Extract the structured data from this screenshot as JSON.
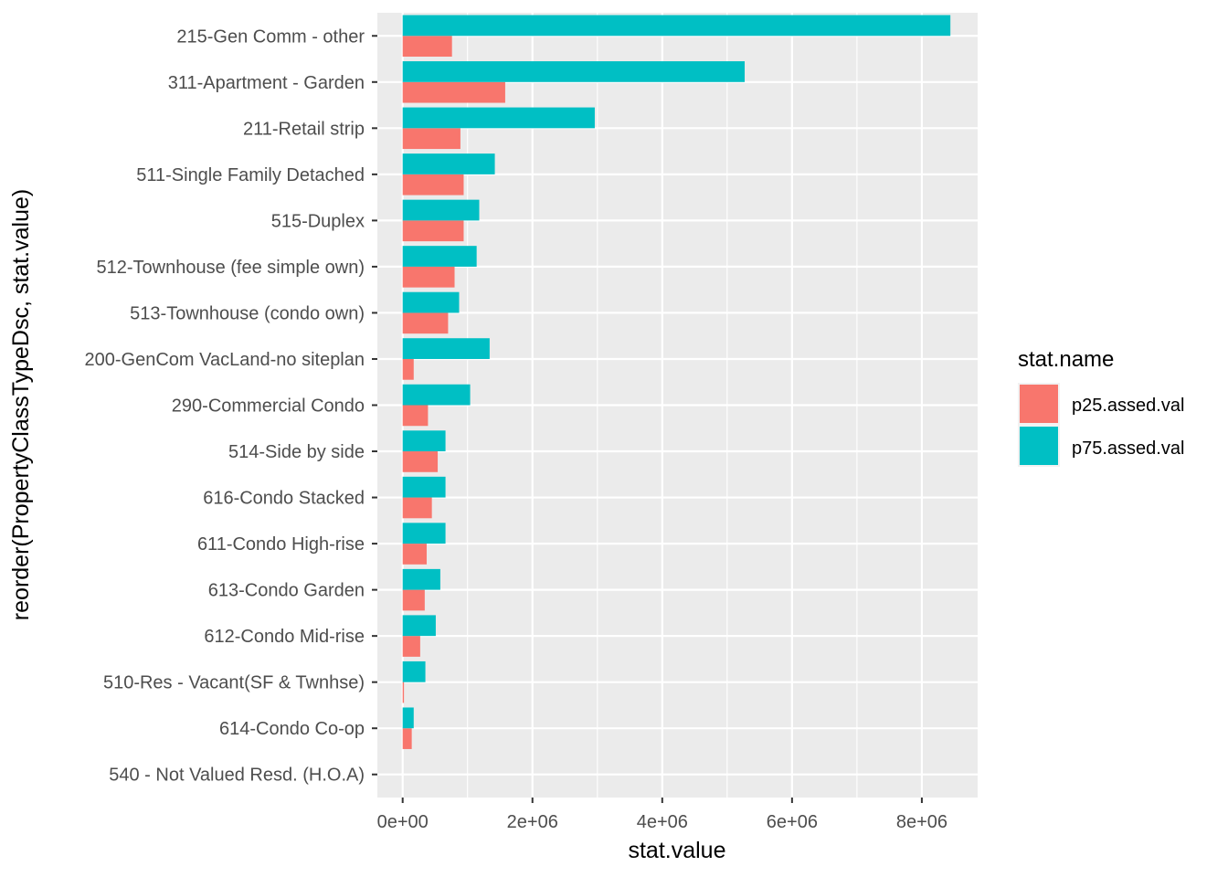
{
  "chart_data": {
    "type": "bar",
    "orientation": "horizontal",
    "title": "",
    "xlabel": "stat.value",
    "ylabel": "reorder(PropertyClassTypeDsc, stat.value)",
    "xlim": [
      -390000,
      8860000
    ],
    "x_ticks": [
      0,
      2000000,
      4000000,
      6000000,
      8000000
    ],
    "x_tick_labels": [
      "0e+00",
      "2e+06",
      "4e+06",
      "6e+06",
      "8e+06"
    ],
    "grid": true,
    "legend": {
      "title": "stat.name",
      "position": "right",
      "entries": [
        "p25.assed.val",
        "p75.assed.val"
      ]
    },
    "colors": {
      "p25.assed.val": "#F8766D",
      "p75.assed.val": "#00BFC4",
      "panel": "#EBEBEB",
      "grid": "#FFFFFF"
    },
    "categories": [
      "215-Gen Comm - other",
      "311-Apartment - Garden",
      "211-Retail strip",
      "511-Single Family Detached",
      "515-Duplex",
      "512-Townhouse (fee simple own)",
      "513-Townhouse (condo own)",
      "200-GenCom VacLand-no siteplan",
      "290-Commercial Condo",
      "514-Side by side",
      "616-Condo Stacked",
      "611-Condo High-rise",
      "613-Condo Garden",
      "612-Condo Mid-rise",
      "510-Res - Vacant(SF & Twnhse)",
      "614-Condo Co-op",
      "540 - Not Valued Resd. (H.O.A)"
    ],
    "series": [
      {
        "name": "p25.assed.val",
        "values": [
          760000,
          1580000,
          890000,
          940000,
          940000,
          800000,
          700000,
          170000,
          390000,
          540000,
          450000,
          370000,
          340000,
          270000,
          20000,
          140000,
          0
        ]
      },
      {
        "name": "p75.assed.val",
        "values": [
          8440000,
          5270000,
          2960000,
          1420000,
          1180000,
          1140000,
          870000,
          1340000,
          1040000,
          660000,
          660000,
          660000,
          580000,
          510000,
          350000,
          170000,
          0
        ]
      }
    ]
  }
}
